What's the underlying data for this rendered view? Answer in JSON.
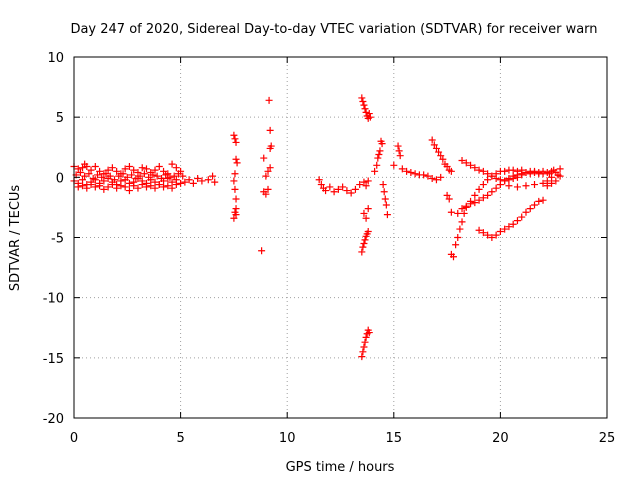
{
  "chart_data": {
    "type": "scatter",
    "title": "Day 247 of 2020, Sidereal Day-to-day VTEC variation (SDTVAR) for receiver warn",
    "xlabel": "GPS time / hours",
    "ylabel": "SDTVAR / TECUs",
    "xlim": [
      0,
      25
    ],
    "ylim": [
      -20,
      10
    ],
    "xticks": [
      0,
      5,
      10,
      15,
      20,
      25
    ],
    "yticks": [
      -20,
      -15,
      -10,
      -5,
      0,
      5,
      10
    ],
    "grid": true,
    "marker": "+",
    "color": "#ff0000",
    "legend": "none",
    "series": [
      {
        "name": "SDTVAR",
        "x": [
          0.0,
          0.2,
          0.4,
          0.5,
          0.6,
          0.8,
          1.0,
          1.2,
          1.4,
          1.6,
          1.8,
          2.0,
          2.2,
          2.4,
          2.6,
          2.8,
          3.0,
          3.2,
          3.4,
          3.6,
          3.8,
          4.0,
          4.2,
          4.4,
          4.6,
          4.8,
          5.0,
          0.0,
          0.2,
          0.4,
          0.6,
          0.8,
          1.0,
          1.2,
          1.4,
          1.6,
          1.8,
          2.0,
          2.2,
          2.4,
          2.6,
          2.8,
          3.0,
          3.2,
          3.4,
          3.6,
          3.8,
          4.0,
          4.2,
          4.4,
          4.6,
          4.8,
          5.0,
          0.1,
          0.3,
          0.5,
          0.7,
          0.9,
          1.1,
          1.3,
          1.5,
          1.7,
          1.9,
          2.1,
          2.3,
          2.5,
          2.7,
          2.9,
          3.1,
          3.3,
          3.5,
          3.7,
          3.9,
          4.1,
          4.3,
          4.5,
          4.7,
          4.9,
          5.1,
          0.2,
          0.4,
          0.6,
          0.8,
          1.0,
          1.2,
          1.4,
          1.6,
          1.8,
          2.0,
          2.2,
          2.4,
          2.6,
          2.8,
          3.0,
          3.2,
          3.4,
          3.6,
          3.8,
          4.0,
          4.2,
          4.4,
          4.6,
          4.8,
          5.2,
          5.4,
          5.6,
          5.8,
          6.0,
          6.3,
          6.5,
          6.6,
          7.5,
          7.55,
          7.6,
          7.6,
          7.65,
          7.55,
          7.5,
          7.6,
          7.6,
          7.55,
          7.5,
          7.6,
          7.55,
          8.8,
          8.9,
          9.0,
          9.1,
          9.2,
          9.2,
          9.25,
          9.2,
          9.15,
          9.1,
          9.0,
          8.9,
          11.5,
          11.6,
          11.7,
          11.8,
          12.0,
          12.2,
          12.4,
          12.6,
          12.8,
          13.0,
          13.2,
          13.4,
          13.6,
          13.7,
          13.8,
          13.5,
          13.55,
          13.6,
          13.65,
          13.7,
          13.75,
          13.8,
          13.85,
          13.9,
          13.5,
          13.55,
          13.6,
          13.65,
          13.7,
          13.75,
          13.8,
          13.5,
          13.55,
          13.6,
          13.65,
          13.7,
          13.75,
          13.8,
          13.85,
          13.6,
          13.7,
          13.8,
          14.1,
          14.2,
          14.25,
          14.3,
          14.35,
          14.4,
          14.45,
          14.5,
          14.55,
          14.6,
          14.65,
          14.7,
          15.2,
          15.25,
          15.3,
          15.0,
          15.4,
          15.6,
          15.8,
          16.0,
          16.2,
          16.4,
          16.6,
          16.8,
          17.0,
          17.2,
          16.8,
          16.9,
          17.0,
          17.1,
          17.2,
          17.3,
          17.4,
          17.5,
          17.6,
          17.7,
          17.5,
          17.6,
          17.7,
          17.7,
          17.8,
          17.9,
          18.0,
          18.1,
          18.2,
          18.3,
          18.4,
          18.6,
          18.8,
          19.0,
          19.2,
          19.4,
          19.6,
          19.8,
          20.0,
          20.2,
          20.4,
          20.6,
          20.8,
          21.0,
          18.2,
          18.4,
          18.6,
          18.8,
          19.0,
          19.2,
          19.4,
          19.6,
          19.8,
          20.0,
          20.2,
          20.4,
          20.6,
          20.8,
          21.0,
          21.2,
          21.4,
          21.6,
          21.8,
          22.0,
          22.2,
          22.4,
          19.0,
          19.2,
          19.4,
          19.6,
          19.8,
          20.0,
          20.2,
          20.4,
          20.6,
          20.8,
          21.0,
          21.2,
          21.4,
          21.6,
          21.8,
          22.0,
          18.0,
          18.2,
          18.4,
          18.6,
          18.8,
          19.0,
          19.2,
          19.4,
          19.6,
          19.8,
          20.0,
          20.2,
          20.4,
          20.6,
          20.8,
          21.0,
          21.2,
          21.4,
          21.6,
          21.8,
          22.0,
          20.0,
          20.4,
          20.8,
          21.2,
          21.6,
          22.0,
          22.2,
          22.4,
          22.6,
          22.8,
          22.2,
          22.4,
          22.6,
          22.8,
          22.3,
          22.5,
          22.7
        ],
        "y": [
          0.9,
          0.7,
          0.8,
          1.1,
          0.9,
          0.6,
          0.9,
          0.5,
          0.3,
          0.6,
          0.8,
          0.5,
          0.3,
          0.7,
          0.9,
          0.6,
          0.4,
          0.8,
          0.7,
          0.4,
          0.6,
          0.9,
          0.5,
          0.3,
          1.1,
          0.8,
          0.5,
          -0.3,
          -0.5,
          -0.2,
          -0.6,
          -0.4,
          -0.2,
          -0.5,
          -0.3,
          -0.1,
          -0.4,
          -0.6,
          -0.3,
          -0.2,
          -0.5,
          -0.4,
          -0.1,
          -0.3,
          -0.5,
          -0.2,
          -0.4,
          -0.6,
          -0.3,
          -0.1,
          -0.4,
          -0.2,
          -0.5,
          0.2,
          0.4,
          0.1,
          0.3,
          -0.1,
          0.2,
          0.0,
          0.3,
          0.1,
          -0.2,
          0.1,
          0.3,
          0.0,
          0.2,
          -0.1,
          0.1,
          0.3,
          0.0,
          0.2,
          0.1,
          -0.1,
          0.2,
          0.0,
          0.1,
          0.3,
          0.1,
          -0.8,
          -0.7,
          -0.9,
          -0.6,
          -0.8,
          -0.7,
          -1.0,
          -0.8,
          -0.6,
          -0.9,
          -0.7,
          -0.8,
          -1.1,
          -0.7,
          -0.9,
          -0.6,
          -0.8,
          -0.7,
          -0.9,
          -0.6,
          -0.8,
          -0.7,
          -0.9,
          -0.6,
          -0.4,
          -0.2,
          -0.5,
          -0.1,
          -0.3,
          -0.2,
          0.1,
          -0.4,
          3.5,
          3.2,
          2.9,
          1.5,
          1.2,
          0.3,
          -0.3,
          -1.8,
          -2.6,
          -2.9,
          -3.4,
          -3.1,
          -1.0,
          -6.1,
          -1.2,
          -1.4,
          -1.0,
          0.8,
          2.4,
          2.6,
          3.9,
          6.4,
          0.5,
          0.1,
          1.6,
          -0.2,
          -0.6,
          -0.9,
          -1.1,
          -0.8,
          -1.2,
          -1.0,
          -0.8,
          -1.1,
          -1.3,
          -1.0,
          -0.6,
          -0.4,
          -0.7,
          -0.3,
          6.6,
          6.3,
          6.0,
          5.7,
          5.4,
          5.1,
          4.9,
          5.3,
          5.0,
          -6.2,
          -5.8,
          -5.5,
          -5.2,
          -4.9,
          -4.7,
          -4.5,
          -14.9,
          -14.5,
          -14.1,
          -13.7,
          -13.3,
          -13.0,
          -12.7,
          -12.9,
          -3.0,
          -3.4,
          -2.6,
          0.5,
          1.0,
          1.6,
          1.9,
          2.2,
          3.0,
          2.8,
          -0.6,
          -1.2,
          -1.8,
          -2.3,
          -3.1,
          2.6,
          2.2,
          1.8,
          1.0,
          0.7,
          0.5,
          0.4,
          0.3,
          0.2,
          0.2,
          0.1,
          -0.1,
          -0.2,
          0.0,
          3.1,
          2.7,
          2.4,
          2.1,
          1.8,
          1.5,
          1.1,
          0.9,
          0.6,
          0.5,
          -1.5,
          -1.8,
          -2.9,
          -6.4,
          -6.6,
          -5.6,
          -5.0,
          -4.3,
          -3.7,
          -3.0,
          -2.5,
          -2.0,
          -1.5,
          -1.0,
          -0.6,
          -0.2,
          0.1,
          0.3,
          0.5,
          0.5,
          0.6,
          0.6,
          0.5,
          0.6,
          1.4,
          1.2,
          1.0,
          0.8,
          0.6,
          0.5,
          0.3,
          0.1,
          -0.1,
          -0.2,
          -0.3,
          -0.2,
          -0.1,
          0.0,
          0.2,
          0.4,
          0.5,
          0.5,
          0.4,
          0.5,
          0.4,
          0.5,
          -4.4,
          -4.6,
          -4.8,
          -5.0,
          -4.8,
          -4.5,
          -4.3,
          -4.1,
          -3.9,
          -3.6,
          -3.3,
          -2.9,
          -2.6,
          -2.3,
          -2.0,
          -1.9,
          -3.0,
          -2.6,
          -2.4,
          -2.2,
          -2.1,
          -1.9,
          -1.7,
          -1.5,
          -1.2,
          -0.9,
          -0.6,
          -0.3,
          -0.1,
          0.1,
          0.2,
          0.3,
          0.4,
          0.3,
          0.4,
          0.3,
          0.3,
          -0.6,
          -0.7,
          -0.8,
          -0.7,
          -0.6,
          -0.5,
          -0.3,
          0.0,
          0.4,
          0.7,
          -0.7,
          -0.5,
          -0.3,
          0.1,
          0.3,
          0.6,
          0.2
        ]
      }
    ]
  }
}
